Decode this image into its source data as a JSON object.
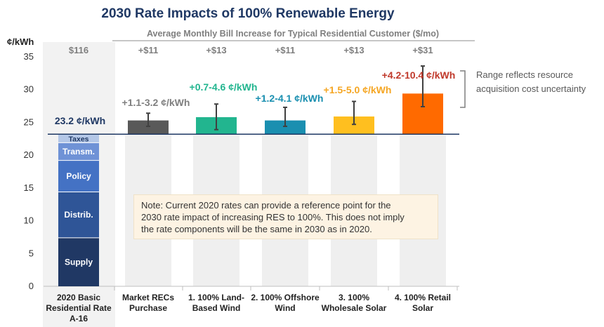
{
  "chart_data": {
    "type": "bar",
    "title": "2030 Rate Impacts of 100% Renewable Energy",
    "ylabel": "¢/kWh",
    "ylim": [
      0,
      35
    ],
    "yticks": [
      0,
      5,
      10,
      15,
      20,
      25,
      30,
      35
    ],
    "bill_header": "Average Monthly Bill Increase for Typical Residential Customer ($/mo)",
    "baseline": {
      "value": 23.2,
      "label": "23.2 ¢/kWh",
      "category": [
        "2020 Basic",
        "Residential Rate",
        "A-16"
      ],
      "bill": "$116",
      "components": [
        {
          "name": "Supply",
          "from": 0,
          "to": 7.4,
          "color": "#203864"
        },
        {
          "name": "Distrib.",
          "from": 7.4,
          "to": 14.4,
          "color": "#2f5597"
        },
        {
          "name": "Policy",
          "from": 14.4,
          "to": 19.2,
          "color": "#4472c4"
        },
        {
          "name": "Transm.",
          "from": 19.2,
          "to": 21.9,
          "color": "#6f92d6"
        },
        {
          "name": "Taxes",
          "from": 21.9,
          "to": 23.2,
          "color": "#b4c7e7"
        }
      ]
    },
    "scenarios": [
      {
        "category": [
          "Market RECs",
          "Purchase"
        ],
        "value": 25.3,
        "low": 24.4,
        "high": 26.4,
        "bill": "+$11",
        "range_label": "+1.1-3.2 ¢/kWh",
        "color": "#595959",
        "label_color": "#7f7f7f"
      },
      {
        "category": [
          "1. 100% Land-",
          "Based Wind"
        ],
        "value": 25.8,
        "low": 23.9,
        "high": 27.8,
        "bill": "+$13",
        "range_label": "+0.7-4.6 ¢/kWh",
        "color": "#22b58f",
        "label_color": "#22b58f"
      },
      {
        "category": [
          "2. 100% Offshore",
          "Wind"
        ],
        "value": 25.3,
        "low": 24.4,
        "high": 27.3,
        "bill": "+$11",
        "range_label": "+1.2-4.1 ¢/kWh",
        "color": "#1a8fb0",
        "label_color": "#1a8fb0"
      },
      {
        "category": [
          "3. 100%",
          "Wholesale Solar"
        ],
        "value": 25.9,
        "low": 24.7,
        "high": 28.2,
        "bill": "+$13",
        "range_label": "+1.5-5.0 ¢/kWh",
        "color": "#ffbf1f",
        "label_color": "#f5a623"
      },
      {
        "category": [
          "4. 100% Retail",
          "Solar"
        ],
        "value": 29.4,
        "low": 27.4,
        "high": 33.6,
        "bill": "+$31",
        "range_label": "+4.2-10.4 ¢/kWh",
        "color": "#ff6a00",
        "label_color": "#c0392b"
      }
    ],
    "range_note": [
      "Range reflects resource",
      "acquisition cost uncertainty"
    ],
    "note": [
      "Note: Current 2020 rates can provide a reference point for the",
      "2030 rate impact of increasing RES to 100%.  This does not imply",
      "the rate components will be the same in 2030 as in 2020."
    ]
  }
}
